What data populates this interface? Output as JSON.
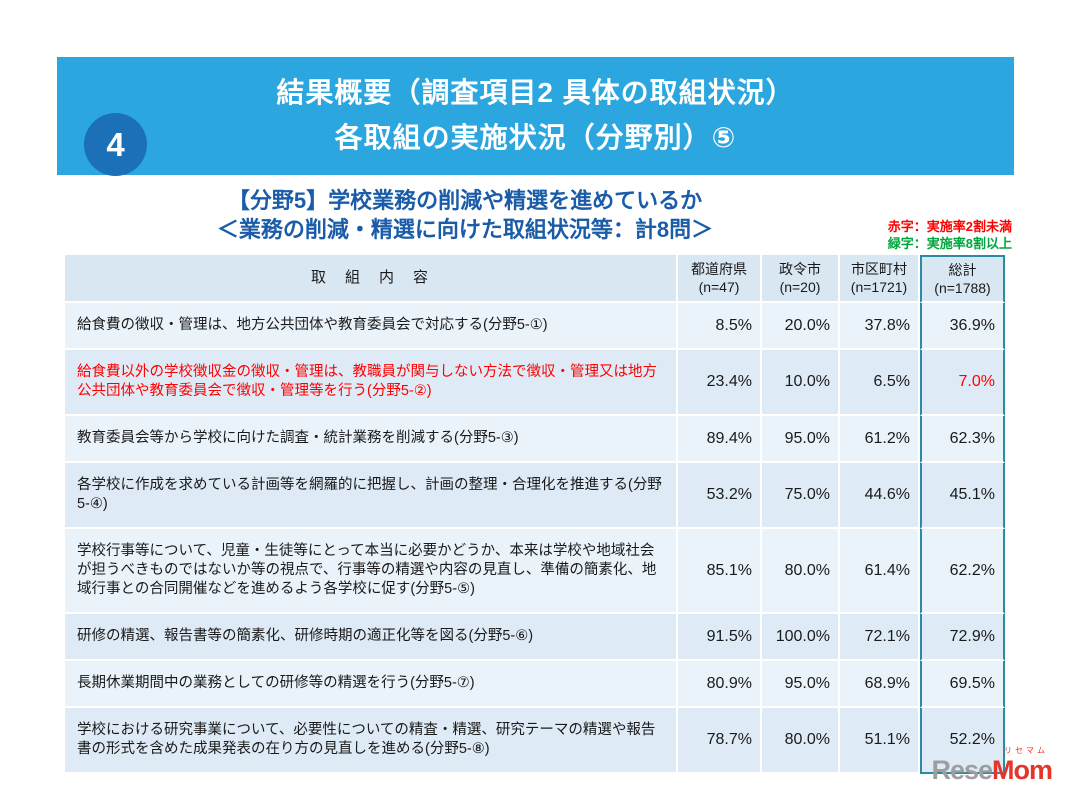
{
  "slide": {
    "number": "4",
    "title1": "結果概要（調査項目2 具体の取組状況）",
    "title2": "各取組の実施状況（分野別）⑤",
    "subtitle1": "【分野5】学校業務の削減や精選を進めているか",
    "subtitle2": "＜業務の削減・精選に向けた取組状況等：計8問＞",
    "legend_red": "赤字：実施率2割未満",
    "legend_green": "緑字：実施率8割以上"
  },
  "colors": {
    "band_blue": "#2BA6DF",
    "circle_blue": "#1C70B8",
    "subtitle_blue": "#1A5CA8",
    "legend_red": "#FF0000",
    "legend_green": "#00A63C",
    "total_box_teal": "#2C8BA0",
    "row_light": "#EAF2FA",
    "row_dark": "#DEEBF6"
  },
  "table": {
    "header_content": "取　組　内　容",
    "columns": [
      {
        "label": "都道府県",
        "n": "(n=47)"
      },
      {
        "label": "政令市",
        "n": "(n=20)"
      },
      {
        "label": "市区町村",
        "n": "(n=1721)"
      },
      {
        "label": "総計",
        "n": "(n=1788)"
      }
    ],
    "rows": [
      {
        "text": "給食費の徴収・管理は、地方公共団体や教育委員会で対応する(分野5-①)",
        "values": [
          "8.5%",
          "20.0%",
          "37.8%",
          "36.9%"
        ]
      },
      {
        "text": "給食費以外の学校徴収金の徴収・管理は、教職員が関与しない方法で徴収・管理又は地方公共団体や教育委員会で徴収・管理等を行う(分野5-②)",
        "values": [
          "23.4%",
          "10.0%",
          "6.5%",
          "7.0%"
        ]
      },
      {
        "text": "教育委員会等から学校に向けた調査・統計業務を削減する(分野5-③)",
        "values": [
          "89.4%",
          "95.0%",
          "61.2%",
          "62.3%"
        ]
      },
      {
        "text": "各学校に作成を求めている計画等を網羅的に把握し、計画の整理・合理化を推進する(分野5-④)",
        "values": [
          "53.2%",
          "75.0%",
          "44.6%",
          "45.1%"
        ]
      },
      {
        "text": "学校行事等について、児童・生徒等にとって本当に必要かどうか、本来は学校や地域社会が担うべきものではないか等の視点で、行事等の精選や内容の見直し、準備の簡素化、地域行事との合同開催などを進めるよう各学校に促す(分野5-⑤)",
        "values": [
          "85.1%",
          "80.0%",
          "61.4%",
          "62.2%"
        ]
      },
      {
        "text": "研修の精選、報告書等の簡素化、研修時期の適正化等を図る(分野5-⑥)",
        "values": [
          "91.5%",
          "100.0%",
          "72.1%",
          "72.9%"
        ]
      },
      {
        "text": "長期休業期間中の業務としての研修等の精選を行う(分野5-⑦)",
        "values": [
          "80.9%",
          "95.0%",
          "68.9%",
          "69.5%"
        ]
      },
      {
        "text": "学校における研究事業について、必要性についての精査・精選、研究テーマの精選や報告書の形式を含めた成果発表の在り方の見直しを進める(分野5-⑧)",
        "values": [
          "78.7%",
          "80.0%",
          "51.1%",
          "52.2%"
        ]
      }
    ]
  },
  "footer": {
    "logo_small": "リセマム",
    "logo_gray": "Rese",
    "logo_red": "Mom"
  }
}
